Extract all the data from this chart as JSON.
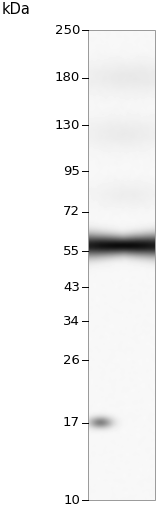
{
  "kda_label": "kDa",
  "markers": [
    250,
    180,
    130,
    95,
    72,
    55,
    43,
    34,
    26,
    17,
    10
  ],
  "background_color": "#ffffff",
  "main_band_kda": 57,
  "main_band_intensity": 0.95,
  "faint_band_kda": 17,
  "faint_band_intensity": 0.5,
  "label_fontsize": 9.5,
  "kda_fontsize": 10.5,
  "marker_log_min": 10,
  "marker_log_max": 250,
  "fig_width": 1.6,
  "fig_height": 5.14,
  "fig_dpi": 100
}
